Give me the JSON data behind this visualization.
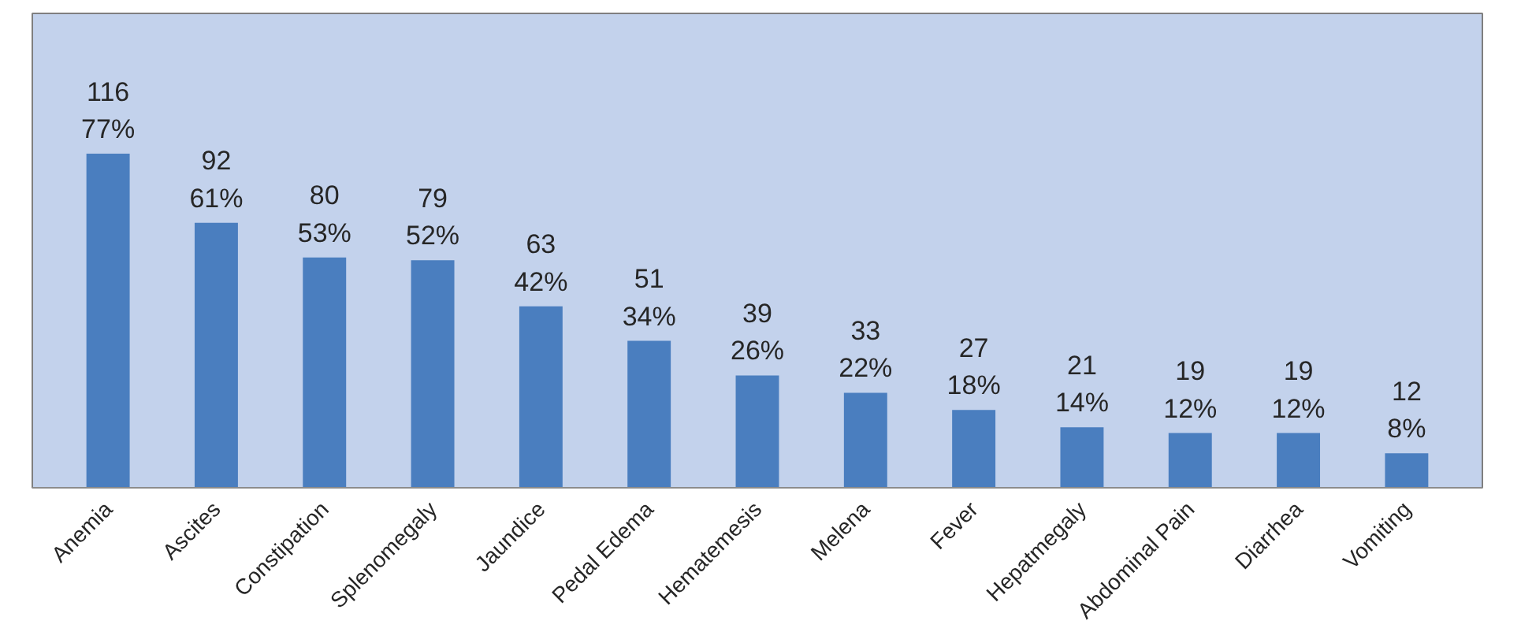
{
  "chart_data": {
    "type": "bar",
    "categories": [
      "Anemia",
      "Ascites",
      "Constipation",
      "Splenomegaly",
      "Jaundice",
      "Pedal Edema",
      "Hematemesis",
      "Melena",
      "Fever",
      "Hepatmegaly",
      "Abdominal Pain",
      "Diarrhea",
      "Vomiting"
    ],
    "values": [
      116,
      92,
      80,
      79,
      63,
      51,
      39,
      33,
      27,
      21,
      19,
      19,
      12
    ],
    "value_labels": [
      "116\n77%",
      "92\n61%",
      "80\n53%",
      "79\n52%",
      "63\n42%",
      "51\n34%",
      "39\n26%",
      "33\n22%",
      "27\n18%",
      "21\n14%",
      "19\n12%",
      "19\n12%",
      "12\n8%"
    ],
    "color": "#4a7ebf"
  }
}
